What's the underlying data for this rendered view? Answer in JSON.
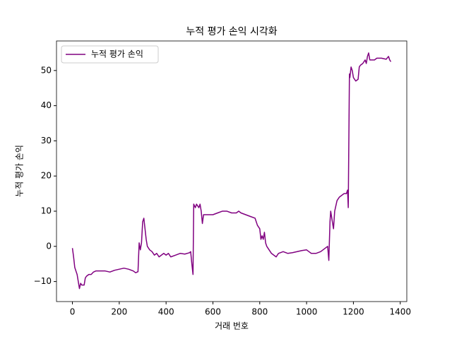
{
  "chart_data": {
    "type": "line",
    "title": "누적 평가 손익 시각화",
    "xlabel": "거래 번호",
    "ylabel": "누적 평가 손익",
    "x": [
      0,
      5,
      10,
      15,
      20,
      25,
      30,
      35,
      40,
      50,
      55,
      60,
      70,
      80,
      90,
      100,
      120,
      140,
      160,
      180,
      200,
      220,
      240,
      260,
      270,
      280,
      285,
      290,
      295,
      300,
      305,
      310,
      315,
      320,
      330,
      340,
      350,
      360,
      370,
      380,
      390,
      400,
      410,
      420,
      440,
      460,
      480,
      500,
      505,
      510,
      515,
      518,
      525,
      530,
      540,
      545,
      550,
      555,
      560,
      580,
      600,
      620,
      640,
      660,
      680,
      700,
      710,
      720,
      740,
      760,
      780,
      790,
      800,
      805,
      810,
      815,
      820,
      825,
      830,
      840,
      850,
      860,
      870,
      880,
      900,
      920,
      940,
      960,
      980,
      1000,
      1010,
      1020,
      1040,
      1060,
      1080,
      1090,
      1095,
      1100,
      1103,
      1110,
      1115,
      1120,
      1130,
      1140,
      1150,
      1160,
      1170,
      1175,
      1178,
      1183,
      1185,
      1190,
      1195,
      1200,
      1210,
      1220,
      1225,
      1230,
      1240,
      1250,
      1255,
      1260,
      1265,
      1270,
      1280,
      1290,
      1300,
      1320,
      1340,
      1350,
      1355,
      1360
    ],
    "series": [
      {
        "name": "누적 평가 손익",
        "color": "#800080",
        "values": [
          -0.5,
          -3,
          -6,
          -7,
          -8,
          -10,
          -12,
          -10.5,
          -11,
          -11,
          -9,
          -8.5,
          -8,
          -8,
          -7.3,
          -7,
          -7,
          -7,
          -7.3,
          -6.8,
          -6.5,
          -6.2,
          -6.5,
          -7,
          -7.5,
          -7.2,
          1,
          -1,
          1,
          7,
          8,
          5,
          2,
          0,
          -1,
          -1.5,
          -2.5,
          -2,
          -3,
          -2.5,
          -2,
          -2.5,
          -2,
          -3,
          -2.5,
          -2,
          -2.2,
          -1.8,
          -1.5,
          -5,
          -8,
          12,
          11,
          12,
          11,
          12,
          10,
          6.5,
          9,
          9,
          9,
          9.5,
          10,
          10,
          9.5,
          9.5,
          10,
          9.5,
          9,
          8.5,
          8,
          6,
          5,
          2,
          3,
          2,
          4,
          1,
          0,
          -1,
          -2,
          -2.5,
          -3,
          -2,
          -1.5,
          -2,
          -1.8,
          -1.5,
          -1.2,
          -1,
          -1.5,
          -2,
          -2,
          -1.5,
          -0.5,
          0,
          -4,
          7,
          10,
          7,
          5,
          10,
          13,
          14,
          14.5,
          15,
          15,
          16,
          11,
          49,
          48,
          51,
          50,
          48,
          47,
          47.5,
          51,
          51.5,
          52,
          53,
          52,
          54,
          55,
          53,
          53,
          53,
          53.5,
          53.5,
          53.2,
          54,
          53,
          52.5
        ]
      }
    ],
    "xlim": [
      -68,
      1428
    ],
    "ylim": [
      -15.7,
      58.4
    ],
    "xticks": [
      0,
      200,
      400,
      600,
      800,
      1000,
      1200,
      1400
    ],
    "yticks": [
      {
        "value": -10,
        "label": "−10"
      },
      0,
      10,
      20,
      30,
      40,
      50
    ],
    "legend": "upper left"
  }
}
